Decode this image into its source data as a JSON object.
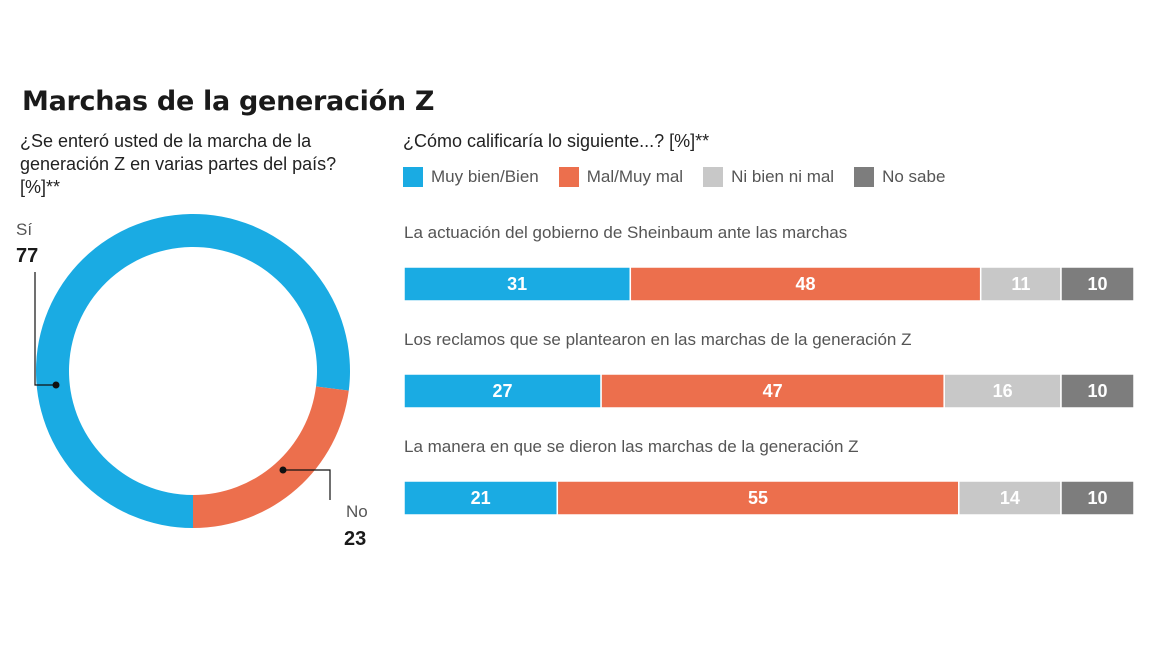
{
  "title": "Marchas de la generación Z",
  "chart_data": [
    {
      "type": "pie",
      "variant": "donut",
      "question": "¿Se enteró usted de la marcha de la generación Z en varias partes del país? [%]**",
      "categories": [
        "Sí",
        "No"
      ],
      "values": [
        77,
        23
      ],
      "colors": [
        "#1aabe3",
        "#ec6f4d"
      ]
    },
    {
      "type": "bar",
      "orientation": "horizontal",
      "stacked": true,
      "question": "¿Cómo calificaría lo siguiente...? [%]**",
      "categories": [
        "La actuación del gobierno de Sheinbaum ante las marchas",
        "Los reclamos que se plantearon en las marchas de la generación Z",
        "La manera en que se dieron las marchas de la generación Z"
      ],
      "series": [
        {
          "name": "Muy bien/Bien",
          "values": [
            31,
            27,
            21
          ],
          "color": "#1aabe3"
        },
        {
          "name": "Mal/Muy mal",
          "values": [
            48,
            47,
            55
          ],
          "color": "#ec6f4d"
        },
        {
          "name": "Ni bien ni mal",
          "values": [
            11,
            16,
            14
          ],
          "color": "#c8c8c8"
        },
        {
          "name": "No sabe",
          "values": [
            10,
            10,
            10
          ],
          "color": "#7d7d7d"
        }
      ],
      "legend": "top"
    }
  ]
}
